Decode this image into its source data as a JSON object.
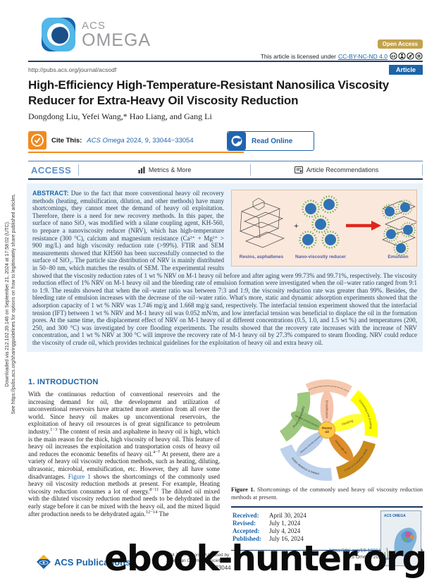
{
  "journal": {
    "logo_acs": "ACS",
    "logo_omega": "OMEGA",
    "open_access": "Open Access",
    "license_prefix": "This article is licensed under",
    "license_link": "CC-BY-NC-ND 4.0",
    "url": "http://pubs.acs.org/journal/acsodf",
    "article_badge": "Article"
  },
  "article": {
    "title_line1": "High-Efficiency High-Temperature-Resistant Nanosilica Viscosity",
    "title_line2": "Reducer for Extra-Heavy Oil Viscosity Reduction",
    "authors": "Dongdong Liu, Yefei Wang,* Hao Liang, and Gang Li",
    "cite_label": "Cite This:",
    "cite_journal": "ACS Omega",
    "cite_ref": " 2024, 9, 33044−33054",
    "read_online": "Read Online"
  },
  "access_bar": {
    "access": "ACCESS",
    "metrics": "Metrics & More",
    "recommendations": "Article Recommendations"
  },
  "abstract": {
    "label": "ABSTRACT:",
    "text": " Due to the fact that more conventional heavy oil recovery methods (heating, emulsification, dilution, and other methods) have many shortcomings, they cannot meet the demand of heavy oil exploitation. Therefore, there is a need for new recovery methods. In this paper, the surface of nano SiO₂ was modified with a silane coupling agent, KH-560, to prepare a nanoviscosity reducer (NRV), which has high-temperature resistance (300 °C), calcium and magnesium resistance (Ca²⁺ + Mg²⁺ > 900 mg/L) and high viscosity reduction rate (>99%). FTIR and SEM measurements showed that KH560 has been successfully connected to the surface of SiO₂. The particle size distribution of NRV is mainly distributed in 50−80 nm, which matches the results of SEM. The experimental results showed that the viscosity reduction rates of 1 wt % NRV on M-1 heavy oil before and after aging were 99.73% and 99.71%, respectively. The viscosity reduction effect of 1% NRV on M-1 heavy oil and the bleeding rate of emulsion formation were investigated when the oil−water ratio ranged from 9:1 to 1:9. The results showed that when the oil−water ratio was between 7:3 and 1:9, the viscosity reduction rate was greater than 99%. Besides, the bleeding rate of emulsion increases with the decrease of the oil−water ratio. What's more, static and dynamic adsorption experiments showed that the adsorption capacity of 1 wt % NRV was 1.746 mg/g and 1.668 mg/g sand, respectively. The interfacial tension experiment showed that the interfacial tension (IFT) between 1 wt % NRV and M-1 heavy oil was 0.052 mN/m, and low interfacial tension was beneficial to displace the oil in the formation pores. At the same time, the displacement effect of NRV on M-1 heavy oil at different concentrations (0.5, 1.0, and 1.5 wt %) and temperatures (200, 250, and 300 °C) was investigated by core flooding experiments. The results showed that the recovery rate increases with the increase of NRV concentration, and 1 wt % NRV at 300 °C will improve the recovery rate of M-1 heavy oil by 27.3% compared to steam flooding. NRV could reduce the viscosity of crude oil, which provides technical guidelines for the exploitation of heavy oil and extra heavy oil.",
    "graphic": {
      "label_left": "Resins, asphaltenes",
      "label_mid": "Nano-viscosity reducer",
      "label_right": "Emulsion",
      "plus": "+"
    }
  },
  "intro": {
    "heading": "1. INTRODUCTION",
    "segments": [
      {
        "text": "With the continuous reduction of conventional reservoirs and the increasing demand for oil, the development and utilization of unconventional reservoirs have attracted more attention from all over the world. Since heavy oil makes up unconventional reservoirs, the exploitation of heavy oil resources is of great significance to petroleum industry."
      },
      {
        "text": "1−3",
        "cls": "sup"
      },
      {
        "text": " The content of resin and asphaltene in heavy oil is high, which is the main reason for the thick, high viscosity of heavy oil. This feature of heavy oil increases the exploitation and transportation costs of heavy oil and reduces the economic benefits of heavy oil."
      },
      {
        "text": "4−7",
        "cls": "sup"
      },
      {
        "text": " At present, there are a variety of heavy oil viscosity reduction methods, such as heating, diluting, ultrasonic, microbial, emulsification, etc. However, they all have some disadvantages. "
      },
      {
        "text": "Figure 1",
        "cls": "link"
      },
      {
        "text": " shows the shortcomings of the commonly used heavy oil viscosity reduction methods at present. For example, Heating viscosity reduction consumes a lot of energy."
      },
      {
        "text": "8−11",
        "cls": "sup"
      },
      {
        "text": " The diluted oil mixed with the diluted viscosity reduction method needs to be dehydrated in the early stage before it can be mixed with the heavy oil, and the mixed liquid after production needs to be dehydrated again."
      },
      {
        "text": "12−14",
        "cls": "sup"
      },
      {
        "text": " The"
      }
    ]
  },
  "figure1": {
    "center_line1": "Heavy",
    "center_line2": "oil",
    "center_color": "#ffc846",
    "petals": [
      {
        "label": "Emulsification",
        "color": "#f6c3ad"
      },
      {
        "label": "Heating",
        "color": "#ffff33"
      },
      {
        "label": "Mixing light oil",
        "color": "#dd8f2d"
      },
      {
        "label": "Ultrasonic viscosity reduction",
        "color": "#b8cce8"
      },
      {
        "label": "Microbial viscosity reduction",
        "color": "#8fbc6f"
      }
    ],
    "ring": [
      {
        "label": "Can not withstand high temperature and high salt at the same time",
        "color": "#f6c9ae"
      },
      {
        "label": "Consuming a lot of energy",
        "color": "#ffff00"
      },
      {
        "label": "Multiple dehydrations of crude oil",
        "color": "#c98a1e"
      },
      {
        "label": "Action distance is limited",
        "color": "#bdd2ec"
      },
      {
        "label": "Poor universality",
        "color": "#9dc87e"
      }
    ],
    "caption_bold": "Figure 1.",
    "caption_text": " Shortcomings of the commonly used heavy oil viscosity reduction methods at present."
  },
  "dates": {
    "received_label": "Received:",
    "received": "April 30, 2024",
    "revised_label": "Revised:",
    "revised": "July 1, 2024",
    "accepted_label": "Accepted:",
    "accepted": "July 4, 2024",
    "published_label": "Published:",
    "published": "July 16, 2024"
  },
  "sidebar": {
    "line1": "Downloaded via 212.102.39.146 on September 21, 2024 at 17:58:02 (UTC).",
    "line2": "See https://pubs.acs.org/sharingguidelines for options on how to legitimately share published articles."
  },
  "footer": {
    "publisher_logo_text": "ACS Publications",
    "copyright_line1": "© 2024 The Authors. Published by",
    "copyright_line2": "American Chemical Society",
    "doi_line": "https://doi.org/10.1021/acsomega.4c04344",
    "citation_line": "ACS Omega 2024, 9, 33044−33054",
    "page_number": "33044"
  },
  "watermark": "ebook-hunter.org",
  "colors": {
    "acs_blue": "#1c63a8",
    "navy_rule": "#17375e",
    "cite_orange": "#f08a21",
    "open_access_tan": "#c3a24d",
    "abstract_bg": "#e9f2fa",
    "graphic_bg": "#fae8dc",
    "arrow_red": "#e1251b",
    "nano_blue": "#2e74b5",
    "nano_green": "#6fac46"
  }
}
